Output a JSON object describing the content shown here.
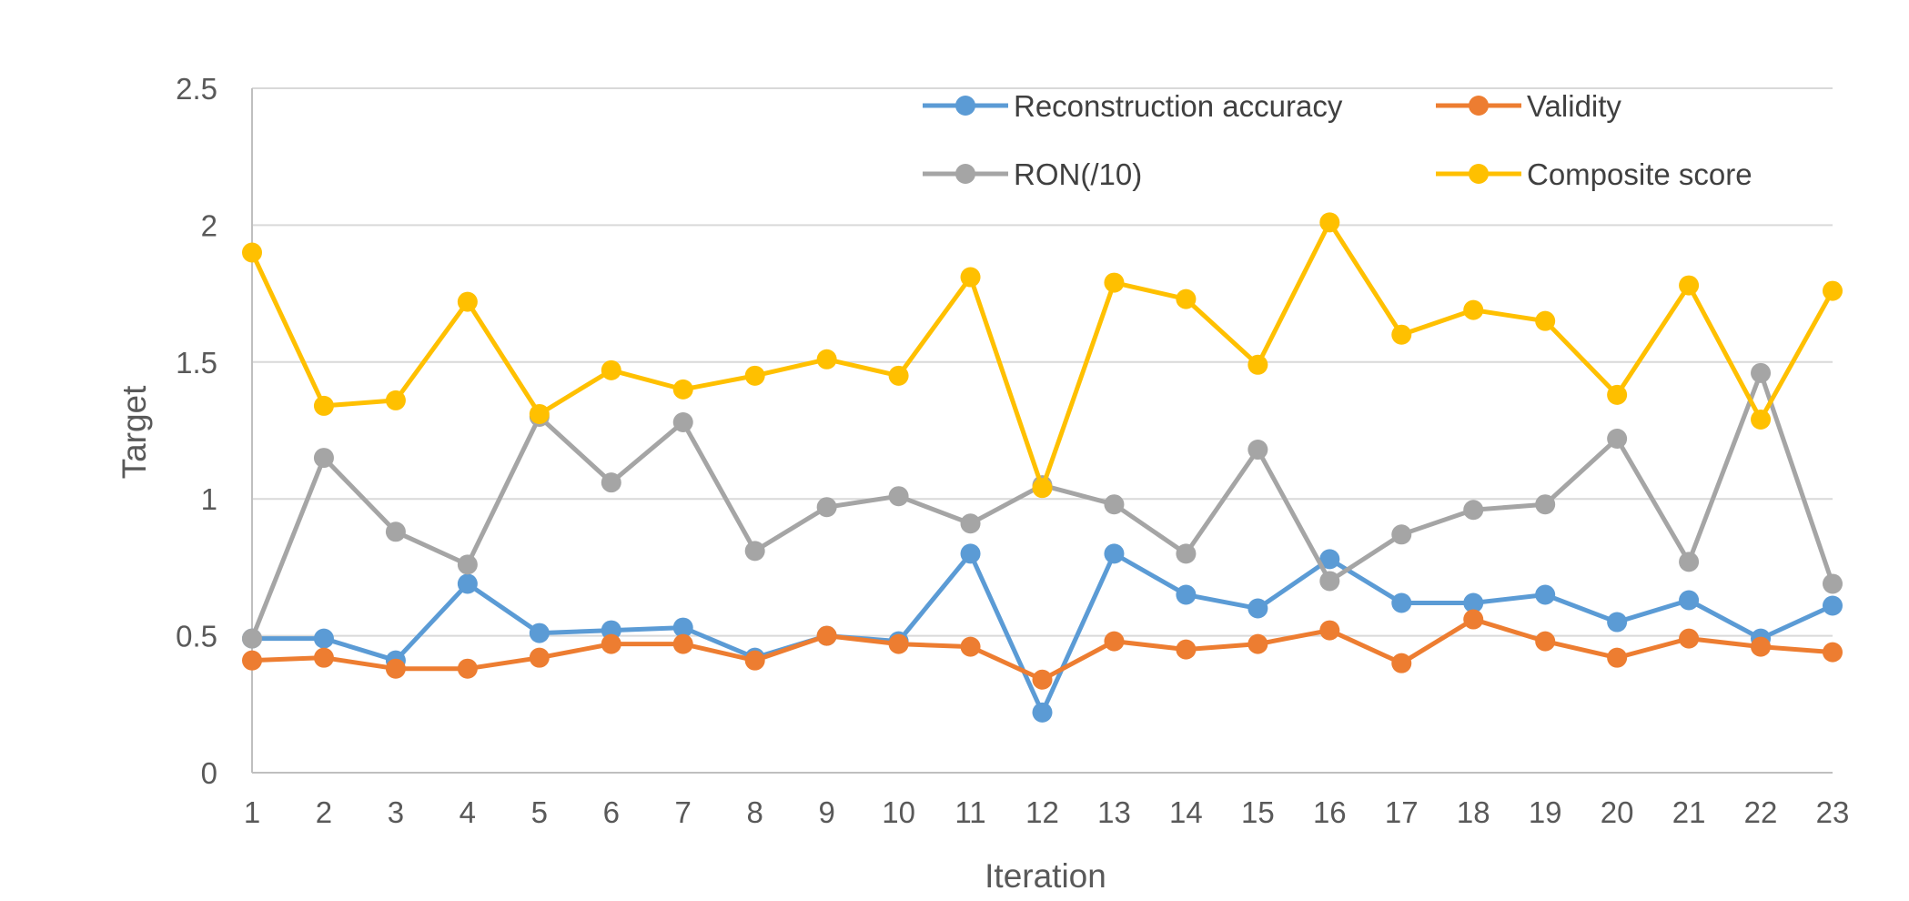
{
  "chart_data": {
    "type": "line",
    "title": "",
    "xlabel": "Iteration",
    "ylabel": "Target",
    "x": [
      1,
      2,
      3,
      4,
      5,
      6,
      7,
      8,
      9,
      10,
      11,
      12,
      13,
      14,
      15,
      16,
      17,
      18,
      19,
      20,
      21,
      22,
      23
    ],
    "x_tick_labels": [
      "1",
      "2",
      "3",
      "4",
      "5",
      "6",
      "7",
      "8",
      "9",
      "10",
      "11",
      "12",
      "13",
      "14",
      "15",
      "16",
      "17",
      "18",
      "19",
      "20",
      "21",
      "22",
      "23"
    ],
    "ylim": [
      0,
      2.5
    ],
    "y_ticks": [
      0,
      0.5,
      1,
      1.5,
      2,
      2.5
    ],
    "y_tick_labels": [
      "0",
      "0.5",
      "1",
      "1.5",
      "2",
      "2.5"
    ],
    "grid": true,
    "legend_position": "top-right",
    "series": [
      {
        "name": "Reconstruction accuracy",
        "color": "#5B9BD5",
        "values": [
          0.49,
          0.49,
          0.41,
          0.69,
          0.51,
          0.52,
          0.53,
          0.42,
          0.5,
          0.48,
          0.8,
          0.22,
          0.8,
          0.65,
          0.6,
          0.78,
          0.62,
          0.62,
          0.65,
          0.55,
          0.63,
          0.49,
          0.61
        ]
      },
      {
        "name": "Validity",
        "color": "#ED7D31",
        "values": [
          0.41,
          0.42,
          0.38,
          0.38,
          0.42,
          0.47,
          0.47,
          0.41,
          0.5,
          0.47,
          0.46,
          0.34,
          0.48,
          0.45,
          0.47,
          0.52,
          0.4,
          0.56,
          0.48,
          0.42,
          0.49,
          0.46,
          0.44
        ]
      },
      {
        "name": "RON(/10)",
        "color": "#A5A5A5",
        "values": [
          0.49,
          1.15,
          0.88,
          0.76,
          1.3,
          1.06,
          1.28,
          0.81,
          0.97,
          1.01,
          0.91,
          1.05,
          0.98,
          0.8,
          1.18,
          0.7,
          0.87,
          0.96,
          0.98,
          1.22,
          0.77,
          1.46,
          0.69
        ]
      },
      {
        "name": "Composite score",
        "color": "#FFC000",
        "values": [
          1.9,
          1.34,
          1.36,
          1.72,
          1.31,
          1.47,
          1.4,
          1.45,
          1.51,
          1.45,
          1.81,
          1.04,
          1.79,
          1.73,
          1.49,
          2.01,
          1.6,
          1.69,
          1.65,
          1.38,
          1.78,
          1.29,
          1.76
        ]
      }
    ]
  }
}
